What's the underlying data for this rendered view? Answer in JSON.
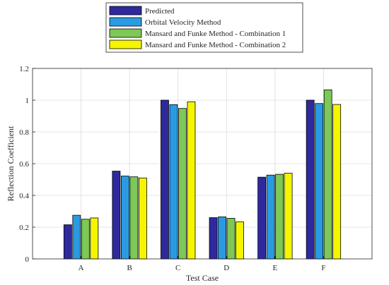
{
  "chart_data": {
    "type": "bar",
    "categories": [
      "A",
      "B",
      "C",
      "D",
      "E",
      "F"
    ],
    "series": [
      {
        "name": "Predicted",
        "color": "#2E2A9E",
        "values": [
          0.215,
          0.553,
          1.0,
          0.26,
          0.515,
          1.0
        ]
      },
      {
        "name": "Orbital Velocity Method",
        "color": "#2A9BE3",
        "values": [
          0.275,
          0.522,
          0.972,
          0.265,
          0.528,
          0.979
        ]
      },
      {
        "name": "Mansard and Funke Method - Combination 1",
        "color": "#7DC857",
        "values": [
          0.25,
          0.517,
          0.948,
          0.256,
          0.533,
          1.065
        ]
      },
      {
        "name": "Mansard and Funke Method - Combination 2",
        "color": "#F5F500",
        "values": [
          0.258,
          0.51,
          0.99,
          0.233,
          0.54,
          0.973
        ]
      }
    ],
    "yticks": [
      "0",
      "0.2",
      "0.4",
      "0.6",
      "0.8",
      "1",
      "1.2"
    ],
    "ylim": [
      0,
      1.2
    ],
    "xlabel": "Test Case",
    "ylabel": "Reflection Coefficient",
    "grid": true,
    "legend_position": "top-center"
  }
}
